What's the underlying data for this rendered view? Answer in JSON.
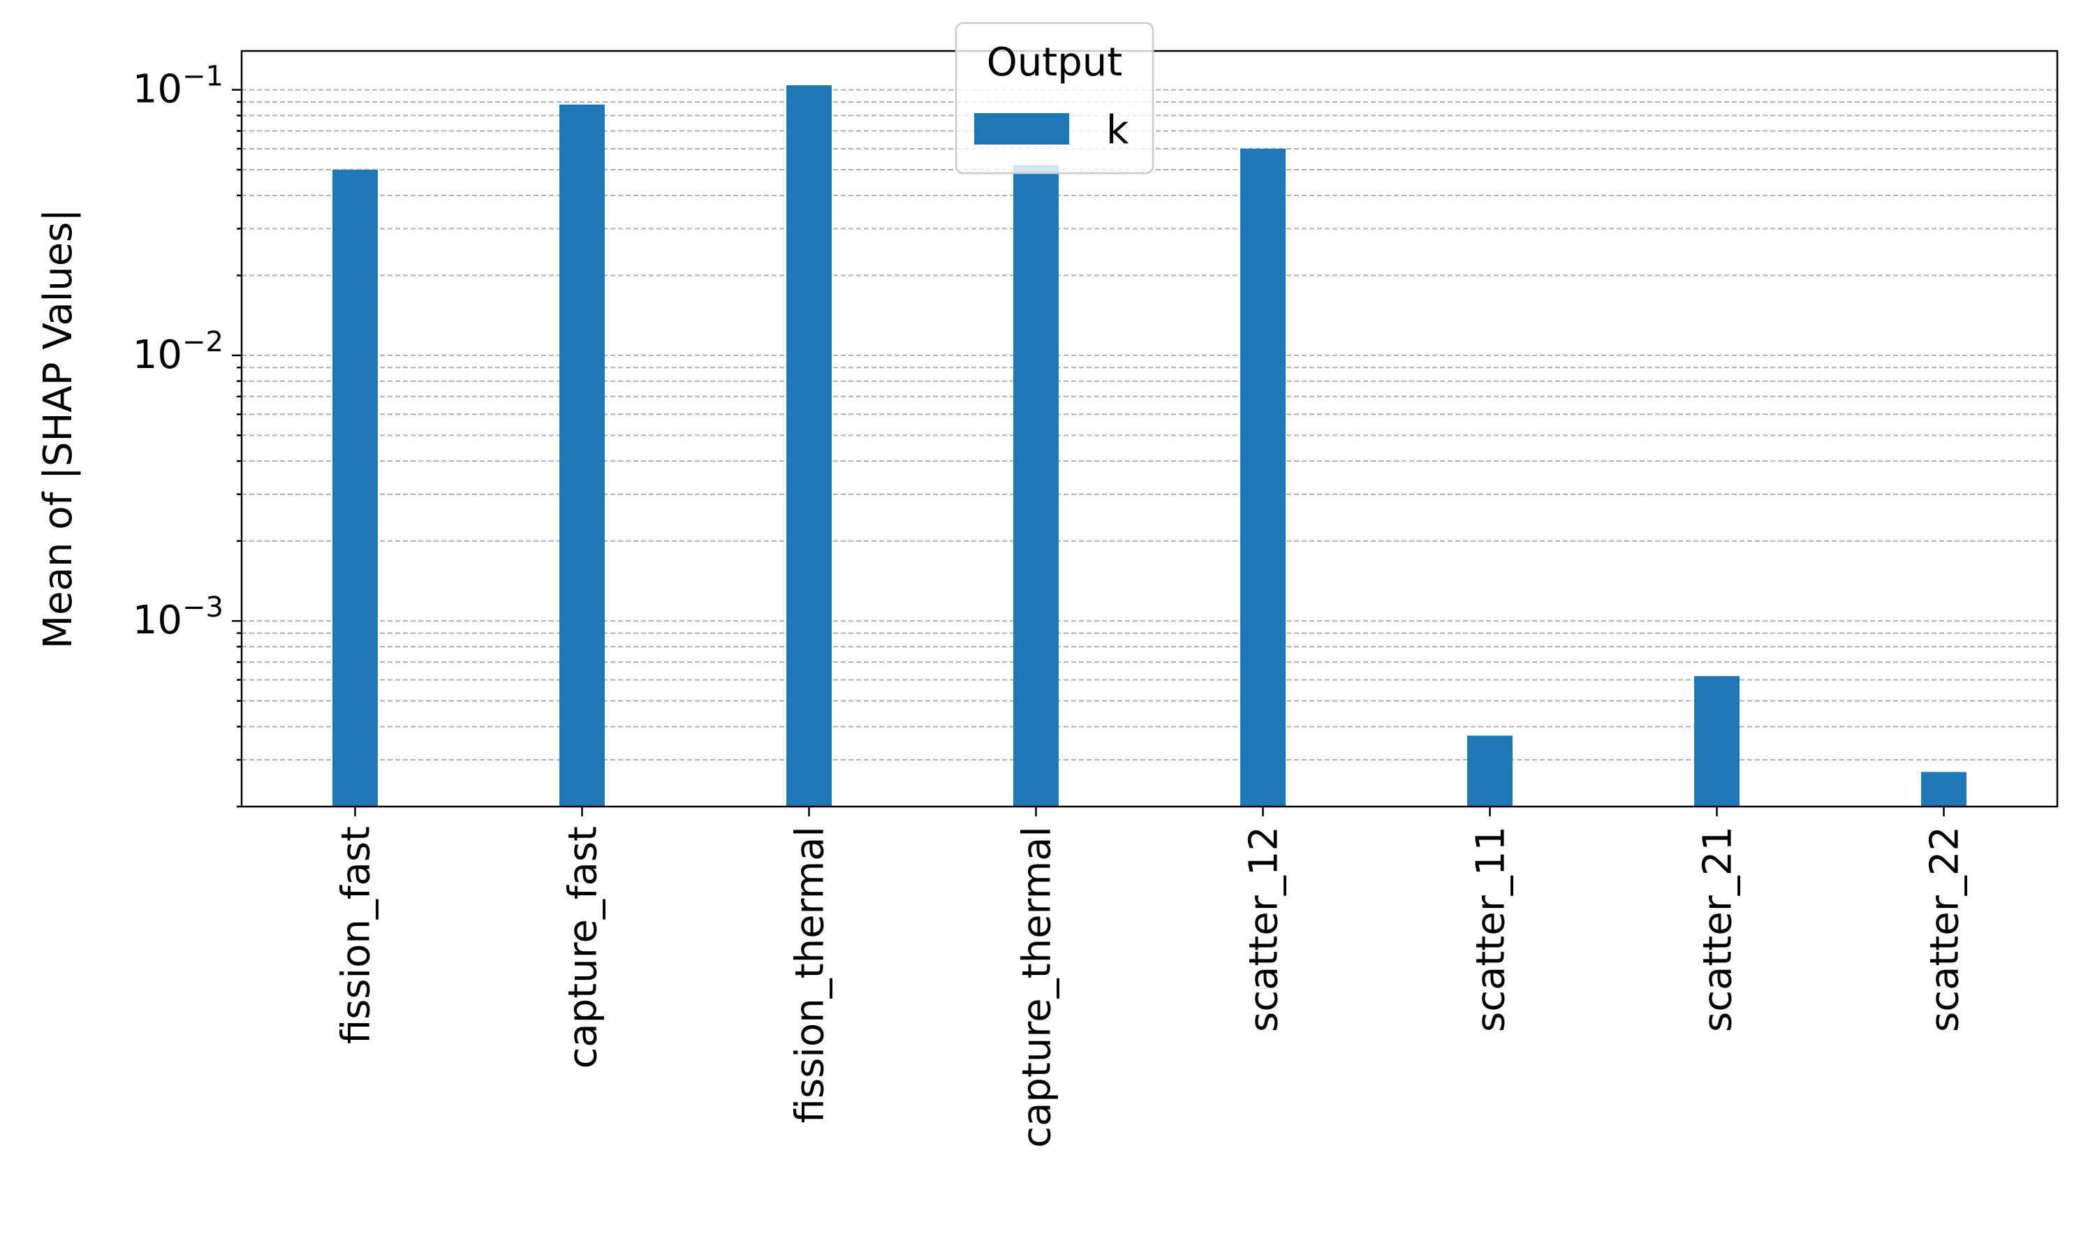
{
  "chart_data": {
    "type": "bar",
    "categories": [
      "fission_fast",
      "capture_fast",
      "fission_thermal",
      "capture_thermal",
      "scatter_12",
      "scatter_11",
      "scatter_21",
      "scatter_22"
    ],
    "series": [
      {
        "name": "k",
        "values": [
          0.05,
          0.088,
          0.104,
          0.052,
          0.06,
          0.00037,
          0.00062,
          0.00027
        ],
        "color": "#1f77b4"
      }
    ],
    "title": "",
    "xlabel": "",
    "ylabel": "Mean of |SHAP Values|",
    "yscale": "log",
    "ylim": [
      0.0002,
      0.14
    ],
    "y_major_ticks": [
      0.001,
      0.01,
      0.1
    ],
    "y_tick_labels": [
      {
        "base": "10",
        "exp": "−3"
      },
      {
        "base": "10",
        "exp": "−2"
      },
      {
        "base": "10",
        "exp": "−1"
      }
    ],
    "grid": {
      "enabled": true,
      "axis": "y",
      "which": "both",
      "style": "dashed"
    },
    "legend": {
      "title": "Output",
      "placement": "upper center"
    }
  }
}
